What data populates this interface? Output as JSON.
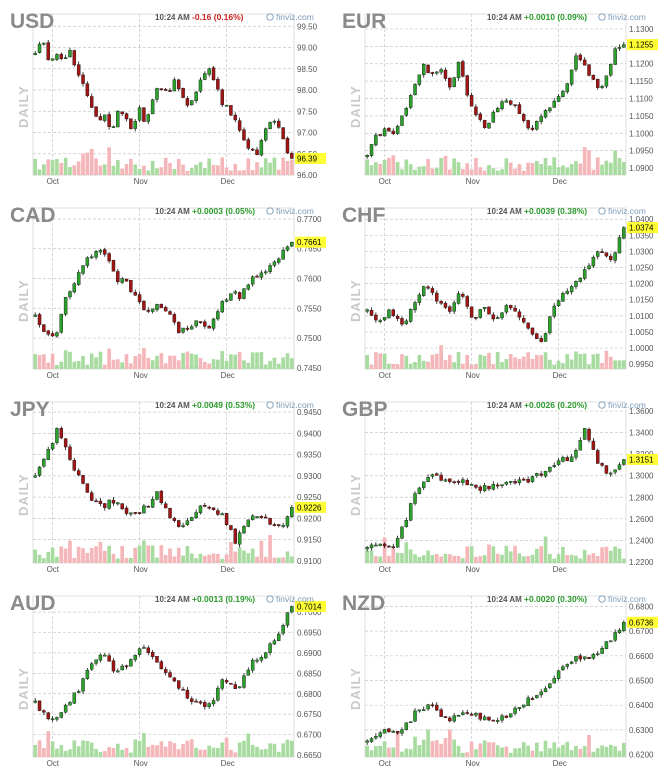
{
  "colors": {
    "up": "#2ca02c",
    "down": "#a31515",
    "vol_up": "#a8dba0",
    "vol_down": "#f4b6b8",
    "last_bg": "#ffff33",
    "pos": "#2b9a2b",
    "neg": "#cc2222"
  },
  "axis_label": "DAILY",
  "brand": "finviz.com",
  "brand_icon": "finviz-logo-icon",
  "months": [
    "Oct",
    "Nov",
    "Dec"
  ],
  "chart_data": [
    {
      "type": "candlestick",
      "symbol": "USD",
      "time": "10:24 AM",
      "change": "-0.16 (0.16%)",
      "direction": "down",
      "last": "96.39",
      "ylim": [
        96.0,
        99.6
      ],
      "yticks": [
        "99.50",
        "99.00",
        "98.50",
        "98.00",
        "97.50",
        "97.00",
        "96.50",
        "96.00"
      ],
      "path": [
        98.9,
        99.2,
        98.7,
        98.9,
        98.6,
        99.0,
        98.4,
        98.1,
        97.7,
        97.2,
        97.4,
        97.0,
        97.6,
        97.3,
        97.1,
        97.6,
        97.2,
        97.8,
        98.1,
        97.9,
        98.2,
        98.0,
        97.6,
        97.8,
        98.3,
        98.5,
        98.1,
        97.7,
        97.5,
        97.3,
        96.9,
        96.6,
        96.5,
        97.0,
        97.3,
        97.1,
        96.7,
        96.4
      ]
    },
    {
      "type": "candlestick",
      "symbol": "EUR",
      "time": "10:24 AM",
      "change": "+0.0010 (0.09%)",
      "direction": "up",
      "last": "1.1255",
      "ylim": [
        1.088,
        1.132
      ],
      "yticks": [
        "1.1300",
        "1.1250",
        "1.1200",
        "1.1150",
        "1.1100",
        "1.1050",
        "1.1000",
        "1.0950",
        "1.0900"
      ],
      "path": [
        1.094,
        1.099,
        1.101,
        1.1,
        1.106,
        1.112,
        1.12,
        1.117,
        1.118,
        1.113,
        1.12,
        1.111,
        1.104,
        1.102,
        1.107,
        1.11,
        1.108,
        1.103,
        1.101,
        1.105,
        1.108,
        1.111,
        1.116,
        1.123,
        1.118,
        1.113,
        1.115,
        1.1245,
        1.1255
      ]
    },
    {
      "type": "candlestick",
      "symbol": "CAD",
      "time": "10:24 AM",
      "change": "+0.0003 (0.05%)",
      "direction": "up",
      "last": "0.7661",
      "ylim": [
        0.7448,
        0.7705
      ],
      "yticks": [
        "0.7700",
        "0.7650",
        "0.7600",
        "0.7550",
        "0.7500",
        "0.7450"
      ],
      "path": [
        0.754,
        0.751,
        0.75,
        0.757,
        0.76,
        0.763,
        0.765,
        0.764,
        0.76,
        0.759,
        0.756,
        0.754,
        0.756,
        0.754,
        0.751,
        0.752,
        0.753,
        0.752,
        0.755,
        0.758,
        0.757,
        0.76,
        0.761,
        0.762,
        0.764,
        0.7661
      ]
    },
    {
      "type": "candlestick",
      "symbol": "CHF",
      "time": "10:24 AM",
      "change": "+0.0039 (0.38%)",
      "direction": "up",
      "last": "1.0374",
      "ylim": [
        0.9935,
        1.041
      ],
      "yticks": [
        "1.0400",
        "1.0350",
        "1.0300",
        "1.0250",
        "1.0200",
        "1.0150",
        "1.0100",
        "1.0050",
        "1.0000",
        "0.9950"
      ],
      "path": [
        1.012,
        1.008,
        1.012,
        1.007,
        1.013,
        1.02,
        1.015,
        1.011,
        1.017,
        1.009,
        1.012,
        1.008,
        1.014,
        1.01,
        1.006,
        1.001,
        1.013,
        1.017,
        1.021,
        1.026,
        1.03,
        1.027,
        1.0374
      ]
    },
    {
      "type": "candlestick",
      "symbol": "JPY",
      "time": "10:24 AM",
      "change": "+0.0049 (0.53%)",
      "direction": "up",
      "last": "0.9226",
      "ylim": [
        0.9095,
        0.9455
      ],
      "yticks": [
        "0.9450",
        "0.9400",
        "0.9350",
        "0.9300",
        "0.9250",
        "0.9200",
        "0.9150",
        "0.9100"
      ],
      "path": [
        0.93,
        0.935,
        0.941,
        0.935,
        0.929,
        0.925,
        0.923,
        0.924,
        0.922,
        0.921,
        0.923,
        0.926,
        0.92,
        0.918,
        0.92,
        0.923,
        0.922,
        0.92,
        0.914,
        0.92,
        0.921,
        0.919,
        0.918,
        0.9226
      ]
    },
    {
      "type": "candlestick",
      "symbol": "GBP",
      "time": "10:24 AM",
      "change": "+0.0026 (0.20%)",
      "direction": "up",
      "last": "1.3151",
      "ylim": [
        1.219,
        1.361
      ],
      "yticks": [
        "1.3600",
        "1.3400",
        "1.3200",
        "1.3000",
        "1.2800",
        "1.2600",
        "1.2400",
        "1.2200"
      ],
      "path": [
        1.233,
        1.235,
        1.23,
        1.26,
        1.29,
        1.301,
        1.295,
        1.297,
        1.29,
        1.288,
        1.292,
        1.296,
        1.294,
        1.299,
        1.305,
        1.314,
        1.318,
        1.345,
        1.31,
        1.3,
        1.3151
      ]
    },
    {
      "type": "candlestick",
      "symbol": "AUD",
      "time": "10:24 AM",
      "change": "+0.0013 (0.19%)",
      "direction": "up",
      "last": "0.7014",
      "ylim": [
        0.6645,
        0.702
      ],
      "yticks": [
        "0.7000",
        "0.6950",
        "0.6900",
        "0.6850",
        "0.6800",
        "0.6750",
        "0.6700",
        "0.6650"
      ],
      "path": [
        0.678,
        0.673,
        0.676,
        0.68,
        0.686,
        0.69,
        0.685,
        0.688,
        0.692,
        0.688,
        0.684,
        0.68,
        0.678,
        0.677,
        0.684,
        0.68,
        0.688,
        0.69,
        0.695,
        0.7014
      ]
    },
    {
      "type": "candlestick",
      "symbol": "NZD",
      "time": "10:24 AM",
      "change": "+0.0020 (0.30%)",
      "direction": "up",
      "last": "0.6736",
      "ylim": [
        0.619,
        0.681
      ],
      "yticks": [
        "0.6800",
        "0.6700",
        "0.6600",
        "0.6500",
        "0.6400",
        "0.6300",
        "0.6200"
      ],
      "path": [
        0.625,
        0.631,
        0.628,
        0.637,
        0.64,
        0.634,
        0.638,
        0.635,
        0.633,
        0.637,
        0.642,
        0.646,
        0.654,
        0.659,
        0.66,
        0.665,
        0.6736
      ]
    }
  ]
}
